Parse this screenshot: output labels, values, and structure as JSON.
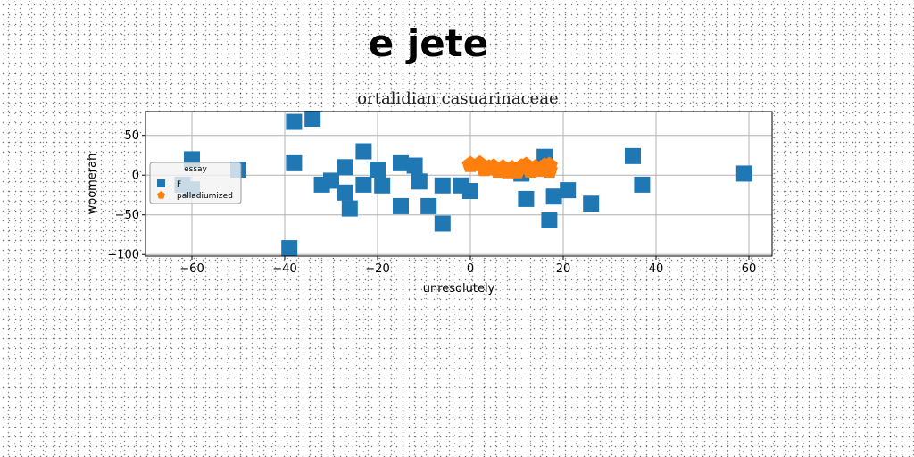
{
  "banner_title": "e jete",
  "chart_data": {
    "type": "scatter",
    "title": "ortalidian casuarinaceae",
    "xlabel": "unresolutely",
    "ylabel": "woomerah",
    "xlim": [
      -70,
      65
    ],
    "ylim": [
      -102,
      80
    ],
    "xticks": [
      -60,
      -40,
      -20,
      0,
      20,
      40,
      60
    ],
    "yticks": [
      -100,
      -50,
      0,
      50
    ],
    "xtick_labels": [
      "−60",
      "−40",
      "−20",
      "0",
      "20",
      "40",
      "60"
    ],
    "ytick_labels": [
      "−100",
      "−50",
      "0",
      "50"
    ],
    "grid": true,
    "legend": {
      "title": "essay",
      "position": "center-left"
    },
    "series": [
      {
        "name": "F",
        "marker": "square",
        "color": "#1f77b4",
        "points": [
          [
            -60,
            20
          ],
          [
            -62,
            -12
          ],
          [
            -60,
            -18
          ],
          [
            -50,
            7
          ],
          [
            -38,
            67
          ],
          [
            -34,
            71
          ],
          [
            -38,
            15
          ],
          [
            -39,
            -92
          ],
          [
            -32,
            -12
          ],
          [
            -30,
            -7
          ],
          [
            -27,
            10
          ],
          [
            -27,
            -22
          ],
          [
            -26,
            -42
          ],
          [
            -23,
            30
          ],
          [
            -23,
            -12
          ],
          [
            -20,
            7
          ],
          [
            -19,
            -13
          ],
          [
            -15,
            15
          ],
          [
            -15,
            -39
          ],
          [
            -12,
            12
          ],
          [
            -11,
            -8
          ],
          [
            -9,
            -39
          ],
          [
            -6,
            -13
          ],
          [
            -6,
            -61
          ],
          [
            -2,
            -13
          ],
          [
            0,
            -20
          ],
          [
            11,
            2
          ],
          [
            12,
            -30
          ],
          [
            16,
            23
          ],
          [
            17,
            -57
          ],
          [
            18,
            -27
          ],
          [
            21,
            -19
          ],
          [
            26,
            -36
          ],
          [
            35,
            24
          ],
          [
            37,
            -12
          ],
          [
            59,
            2
          ]
        ]
      },
      {
        "name": "palladiumized",
        "marker": "pentagon",
        "color": "#ff7f0e",
        "points": [
          [
            0,
            13
          ],
          [
            2,
            14
          ],
          [
            3,
            8
          ],
          [
            4,
            9
          ],
          [
            5,
            10
          ],
          [
            6,
            6
          ],
          [
            7,
            9
          ],
          [
            8,
            5
          ],
          [
            9,
            8
          ],
          [
            10,
            5
          ],
          [
            11,
            10
          ],
          [
            12,
            12
          ],
          [
            13,
            6
          ],
          [
            14,
            9
          ],
          [
            15,
            7
          ],
          [
            16,
            11
          ],
          [
            17,
            12
          ],
          [
            17,
            6
          ]
        ]
      }
    ]
  }
}
